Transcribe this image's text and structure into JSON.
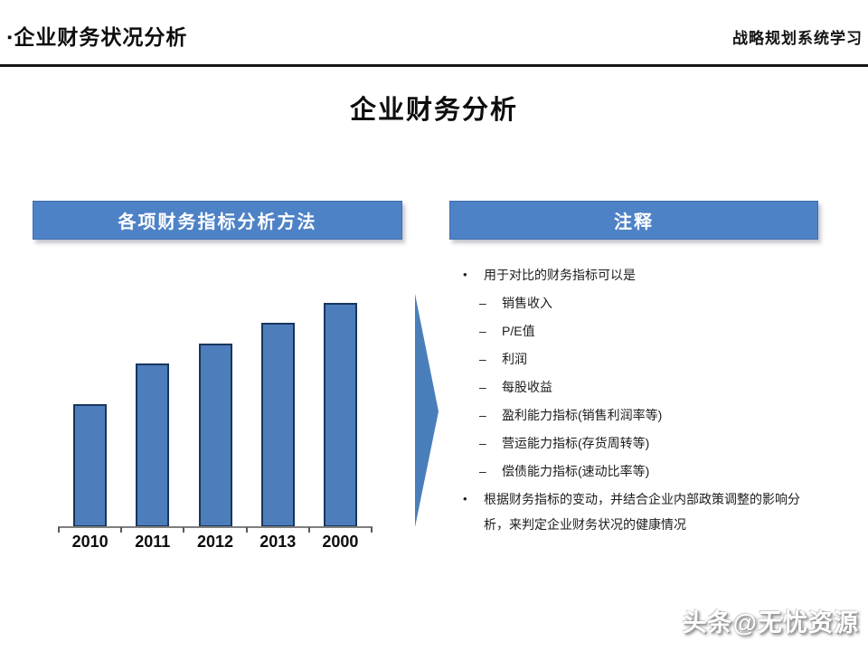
{
  "header": {
    "marker": "▪",
    "title": "企业财务状况分析",
    "right_label": "战略规划系统学习"
  },
  "slide": {
    "title": "企业财务分析"
  },
  "panels": {
    "left_header": "各项财务指标分析方法",
    "right_header": "注释"
  },
  "chart_data": {
    "type": "bar",
    "title": "",
    "xlabel": "",
    "ylabel": "",
    "categories": [
      "2010",
      "2011",
      "2012",
      "2013",
      "2000"
    ],
    "values": [
      55,
      73,
      82,
      91,
      100
    ],
    "value_unit": "percent_of_tallest_bar",
    "ylim": [
      0,
      100
    ],
    "grid": false,
    "legend": false,
    "bar_color": "#4d7dbb",
    "bar_border_color": "#17365d",
    "axis_color": "#7f7f7f"
  },
  "notes": {
    "bullets": [
      {
        "level": 1,
        "marker": "•",
        "text": "用于对比的财务指标可以是"
      },
      {
        "level": 2,
        "marker": "–",
        "text": "销售收入"
      },
      {
        "level": 2,
        "marker": "–",
        "text": "P/E值"
      },
      {
        "level": 2,
        "marker": "–",
        "text": "利润"
      },
      {
        "level": 2,
        "marker": "–",
        "text": "每股收益"
      },
      {
        "level": 2,
        "marker": "–",
        "text": "盈利能力指标(销售利润率等)"
      },
      {
        "level": 2,
        "marker": "–",
        "text": "营运能力指标(存货周转等)"
      },
      {
        "level": 2,
        "marker": "–",
        "text": "偿债能力指标(速动比率等)"
      },
      {
        "level": 1,
        "marker": "•",
        "text": "根据财务指标的变动，并结合企业内部政策调整的影响分析，来判定企业财务状况的健康情况"
      }
    ]
  },
  "watermark": {
    "text": "头条@无忧资源"
  },
  "colors": {
    "accent_blue": "#4e82c6",
    "arrow_blue": "#4a7ebb",
    "divider": "#161616",
    "background": "#ffffff"
  }
}
